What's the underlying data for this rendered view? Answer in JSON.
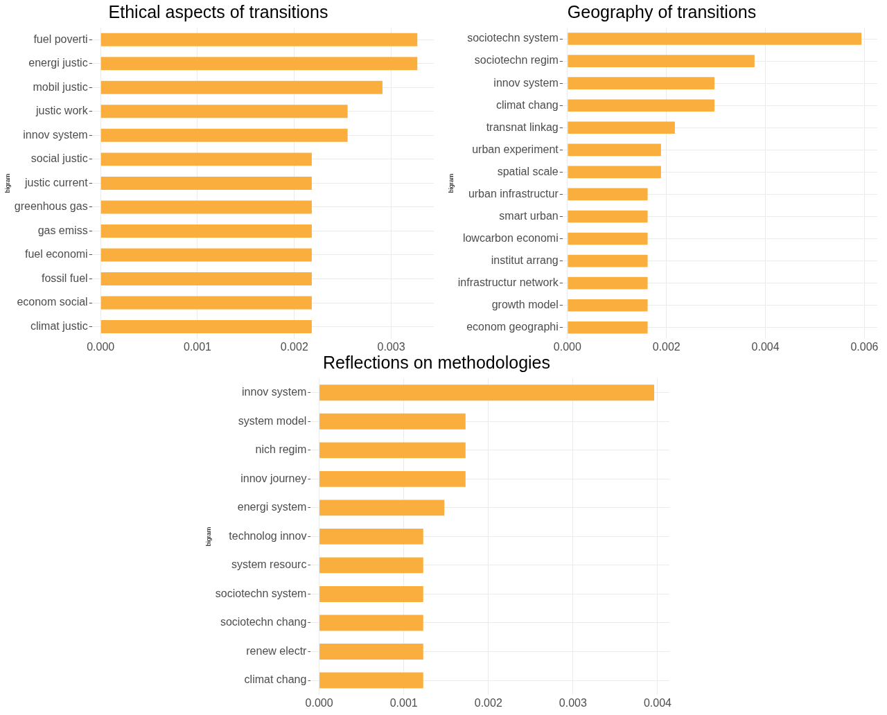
{
  "chart_data": [
    {
      "type": "bar",
      "orientation": "horizontal",
      "title": "Ethical aspects of transitions",
      "ylabel": "bigram",
      "color": "#f9ae3d",
      "grid": true,
      "categories": [
        "fuel poverti",
        "energi justic",
        "mobil justic",
        "justic work",
        "innov system",
        "social justic",
        "justic current",
        "greenhous gas",
        "gas emiss",
        "fuel economi",
        "fossil fuel",
        "econom social",
        "climat justic"
      ],
      "values": [
        0.00327,
        0.00327,
        0.00291,
        0.00255,
        0.00255,
        0.00218,
        0.00218,
        0.00218,
        0.00218,
        0.00218,
        0.00218,
        0.00218,
        0.00218
      ],
      "xlim": [
        -9e-05,
        0.00344
      ],
      "xticks": [
        {
          "value": 0,
          "label": "0.000"
        },
        {
          "value": 0.001,
          "label": "0.001"
        },
        {
          "value": 0.002,
          "label": "0.002"
        },
        {
          "value": 0.003,
          "label": "0.003"
        }
      ]
    },
    {
      "type": "bar",
      "orientation": "horizontal",
      "title": "Geography of transitions",
      "ylabel": "bigram",
      "color": "#f9ae3d",
      "grid": true,
      "categories": [
        "sociotechn system",
        "sociotechn regim",
        "innov system",
        "climat chang",
        "transnat linkag",
        "urban experiment",
        "spatial scale",
        "urban infrastructur",
        "smart urban",
        "lowcarbon economi",
        "institut arrang",
        "infrastructur network",
        "growth model",
        "econom geographi"
      ],
      "values": [
        0.00594,
        0.00378,
        0.00297,
        0.00297,
        0.00217,
        0.00189,
        0.00189,
        0.00162,
        0.00162,
        0.00162,
        0.00162,
        0.00162,
        0.00162,
        0.00162
      ],
      "xlim": [
        -0.0001,
        0.00626
      ],
      "xticks": [
        {
          "value": 0,
          "label": "0.000"
        },
        {
          "value": 0.002,
          "label": "0.002"
        },
        {
          "value": 0.004,
          "label": "0.004"
        },
        {
          "value": 0.006,
          "label": "0.006"
        }
      ]
    },
    {
      "type": "bar",
      "orientation": "horizontal",
      "title": "Reflections on methodologies",
      "ylabel": "bigram",
      "color": "#f9ae3d",
      "grid": true,
      "categories": [
        "innov system",
        "system model",
        "nich regim",
        "innov journey",
        "energi system",
        "technolog innov",
        "system resourc",
        "sociotechn system",
        "sociotechn chang",
        "renew electr",
        "climat chang"
      ],
      "values": [
        0.00396,
        0.00173,
        0.00173,
        0.00173,
        0.00148,
        0.00123,
        0.00123,
        0.00123,
        0.00123,
        0.00123,
        0.00123
      ],
      "xlim": [
        -0.0001,
        0.00414
      ],
      "xticks": [
        {
          "value": 0,
          "label": "0.000"
        },
        {
          "value": 0.001,
          "label": "0.001"
        },
        {
          "value": 0.002,
          "label": "0.002"
        },
        {
          "value": 0.003,
          "label": "0.003"
        },
        {
          "value": 0.004,
          "label": "0.004"
        }
      ]
    }
  ]
}
